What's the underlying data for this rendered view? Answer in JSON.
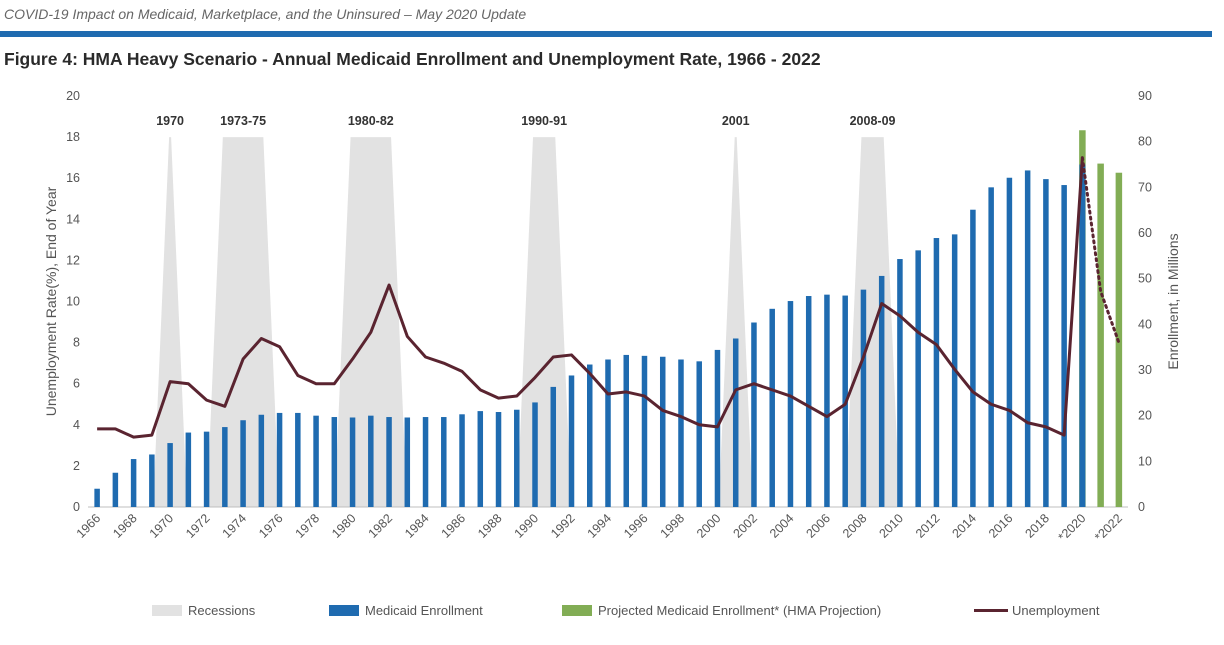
{
  "header": {
    "doc_title": "COVID-19 Impact on Medicaid, Marketplace, and the Uninsured – May 2020 Update",
    "figure_title": "Figure 4: HMA Heavy Scenario - Annual Medicaid Enrollment and Unemployment Rate, 1966 - 2022"
  },
  "colors": {
    "rule": "#1f6bb0",
    "medicaid": "#1f6bb0",
    "projected": "#82ad55",
    "unemployment": "#5a2430",
    "recession": "#e2e2e2"
  },
  "chart_data": {
    "type": "bar",
    "ylabel_left": "Unemployment Rate(%), End of Year",
    "ylabel_right": "Enrollment, in Millions",
    "ylim_left": [
      0,
      20
    ],
    "ylim_right": [
      0,
      90
    ],
    "yticks_left": [
      "0",
      "2",
      "4",
      "6",
      "8",
      "10",
      "12",
      "14",
      "16",
      "18",
      "20"
    ],
    "yticks_right": [
      "0",
      "10",
      "20",
      "30",
      "40",
      "50",
      "60",
      "70",
      "80",
      "90"
    ],
    "x_tick_labels": [
      "1966",
      "1968",
      "1970",
      "1972",
      "1974",
      "1976",
      "1978",
      "1980",
      "1982",
      "1984",
      "1986",
      "1988",
      "1990",
      "1992",
      "1994",
      "1996",
      "1998",
      "2000",
      "2002",
      "2004",
      "2006",
      "2008",
      "2010",
      "2012",
      "2014",
      "2016",
      "2018",
      "*2020",
      "*2022"
    ],
    "years": [
      1966,
      1967,
      1968,
      1969,
      1970,
      1971,
      1972,
      1973,
      1974,
      1975,
      1976,
      1977,
      1978,
      1979,
      1980,
      1981,
      1982,
      1983,
      1984,
      1985,
      1986,
      1987,
      1988,
      1989,
      1990,
      1991,
      1992,
      1993,
      1994,
      1995,
      1996,
      1997,
      1998,
      1999,
      2000,
      2001,
      2002,
      2003,
      2004,
      2005,
      2006,
      2007,
      2008,
      2009,
      2010,
      2011,
      2012,
      2013,
      2014,
      2015,
      2016,
      2017,
      2018,
      2019,
      2020,
      2021,
      2022
    ],
    "series": [
      {
        "name": "Medicaid Enrollment",
        "axis": "right",
        "kind": "bar",
        "x": [
          1966,
          1967,
          1968,
          1969,
          1970,
          1971,
          1972,
          1973,
          1974,
          1975,
          1976,
          1977,
          1978,
          1979,
          1980,
          1981,
          1982,
          1983,
          1984,
          1985,
          1986,
          1987,
          1988,
          1989,
          1990,
          1991,
          1992,
          1993,
          1994,
          1995,
          1996,
          1997,
          1998,
          1999,
          2000,
          2001,
          2002,
          2003,
          2004,
          2005,
          2006,
          2007,
          2008,
          2009,
          2010,
          2011,
          2012,
          2013,
          2014,
          2015,
          2016,
          2017,
          2018,
          2019,
          2020
        ],
        "values": [
          4,
          7.5,
          10.5,
          11.5,
          14,
          16.3,
          16.5,
          17.5,
          19,
          20.2,
          20.6,
          20.6,
          20,
          19.7,
          19.6,
          20,
          19.7,
          19.6,
          19.7,
          19.7,
          20.3,
          21,
          20.8,
          21.3,
          22.9,
          26.3,
          28.8,
          31.2,
          32.3,
          33.3,
          33.1,
          32.9,
          32.3,
          31.9,
          34.4,
          36.9,
          40.4,
          43.4,
          45.1,
          46.2,
          46.5,
          46.3,
          47.6,
          50.6,
          54.3,
          56.2,
          58.9,
          59.7,
          65.1,
          70,
          72.1,
          73.7,
          71.8,
          70.5,
          75
        ]
      },
      {
        "name": "Projected Medicaid Enrollment* (HMA Projection)",
        "axis": "right",
        "kind": "bar",
        "x": [
          2020,
          2021,
          2022
        ],
        "values": [
          82.5,
          75.2,
          73.2
        ]
      },
      {
        "name": "Unemployment",
        "axis": "left",
        "kind": "line",
        "x": [
          1966,
          1967,
          1968,
          1969,
          1970,
          1971,
          1972,
          1973,
          1974,
          1975,
          1976,
          1977,
          1978,
          1979,
          1980,
          1981,
          1982,
          1983,
          1984,
          1985,
          1986,
          1987,
          1988,
          1989,
          1990,
          1991,
          1992,
          1993,
          1994,
          1995,
          1996,
          1997,
          1998,
          1999,
          2000,
          2001,
          2002,
          2003,
          2004,
          2005,
          2006,
          2007,
          2008,
          2009,
          2010,
          2011,
          2012,
          2013,
          2014,
          2015,
          2016,
          2017,
          2018,
          2019,
          2020
        ],
        "values": [
          3.8,
          3.8,
          3.4,
          3.5,
          6.1,
          6.0,
          5.2,
          4.9,
          7.2,
          8.2,
          7.8,
          6.4,
          6.0,
          6.0,
          7.2,
          8.5,
          10.8,
          8.3,
          7.3,
          7.0,
          6.6,
          5.7,
          5.3,
          5.4,
          6.3,
          7.3,
          7.4,
          6.5,
          5.5,
          5.6,
          5.4,
          4.7,
          4.4,
          4.0,
          3.9,
          5.7,
          6.0,
          5.7,
          5.4,
          4.9,
          4.4,
          5.0,
          7.3,
          9.9,
          9.3,
          8.5,
          7.9,
          6.7,
          5.6,
          5.0,
          4.7,
          4.1,
          3.9,
          3.5,
          17.0
        ],
        "projection_x": [
          2020,
          2021,
          2022
        ],
        "projection_values": [
          17.0,
          10.5,
          8.0
        ]
      }
    ],
    "recessions": [
      {
        "label": "1970",
        "start": 1970,
        "end": 1970
      },
      {
        "label": "1973-75",
        "start": 1973,
        "end": 1975
      },
      {
        "label": "1980-82",
        "start": 1980,
        "end": 1982
      },
      {
        "label": "1990-91",
        "start": 1990,
        "end": 1991
      },
      {
        "label": "2001",
        "start": 2001,
        "end": 2001
      },
      {
        "label": "2008-09",
        "start": 2008,
        "end": 2009
      }
    ],
    "legend": [
      "Recessions",
      "Medicaid Enrollment",
      "Projected Medicaid Enrollment* (HMA Projection)",
      "Unemployment"
    ],
    "legend_position": "bottom",
    "grid": false
  }
}
